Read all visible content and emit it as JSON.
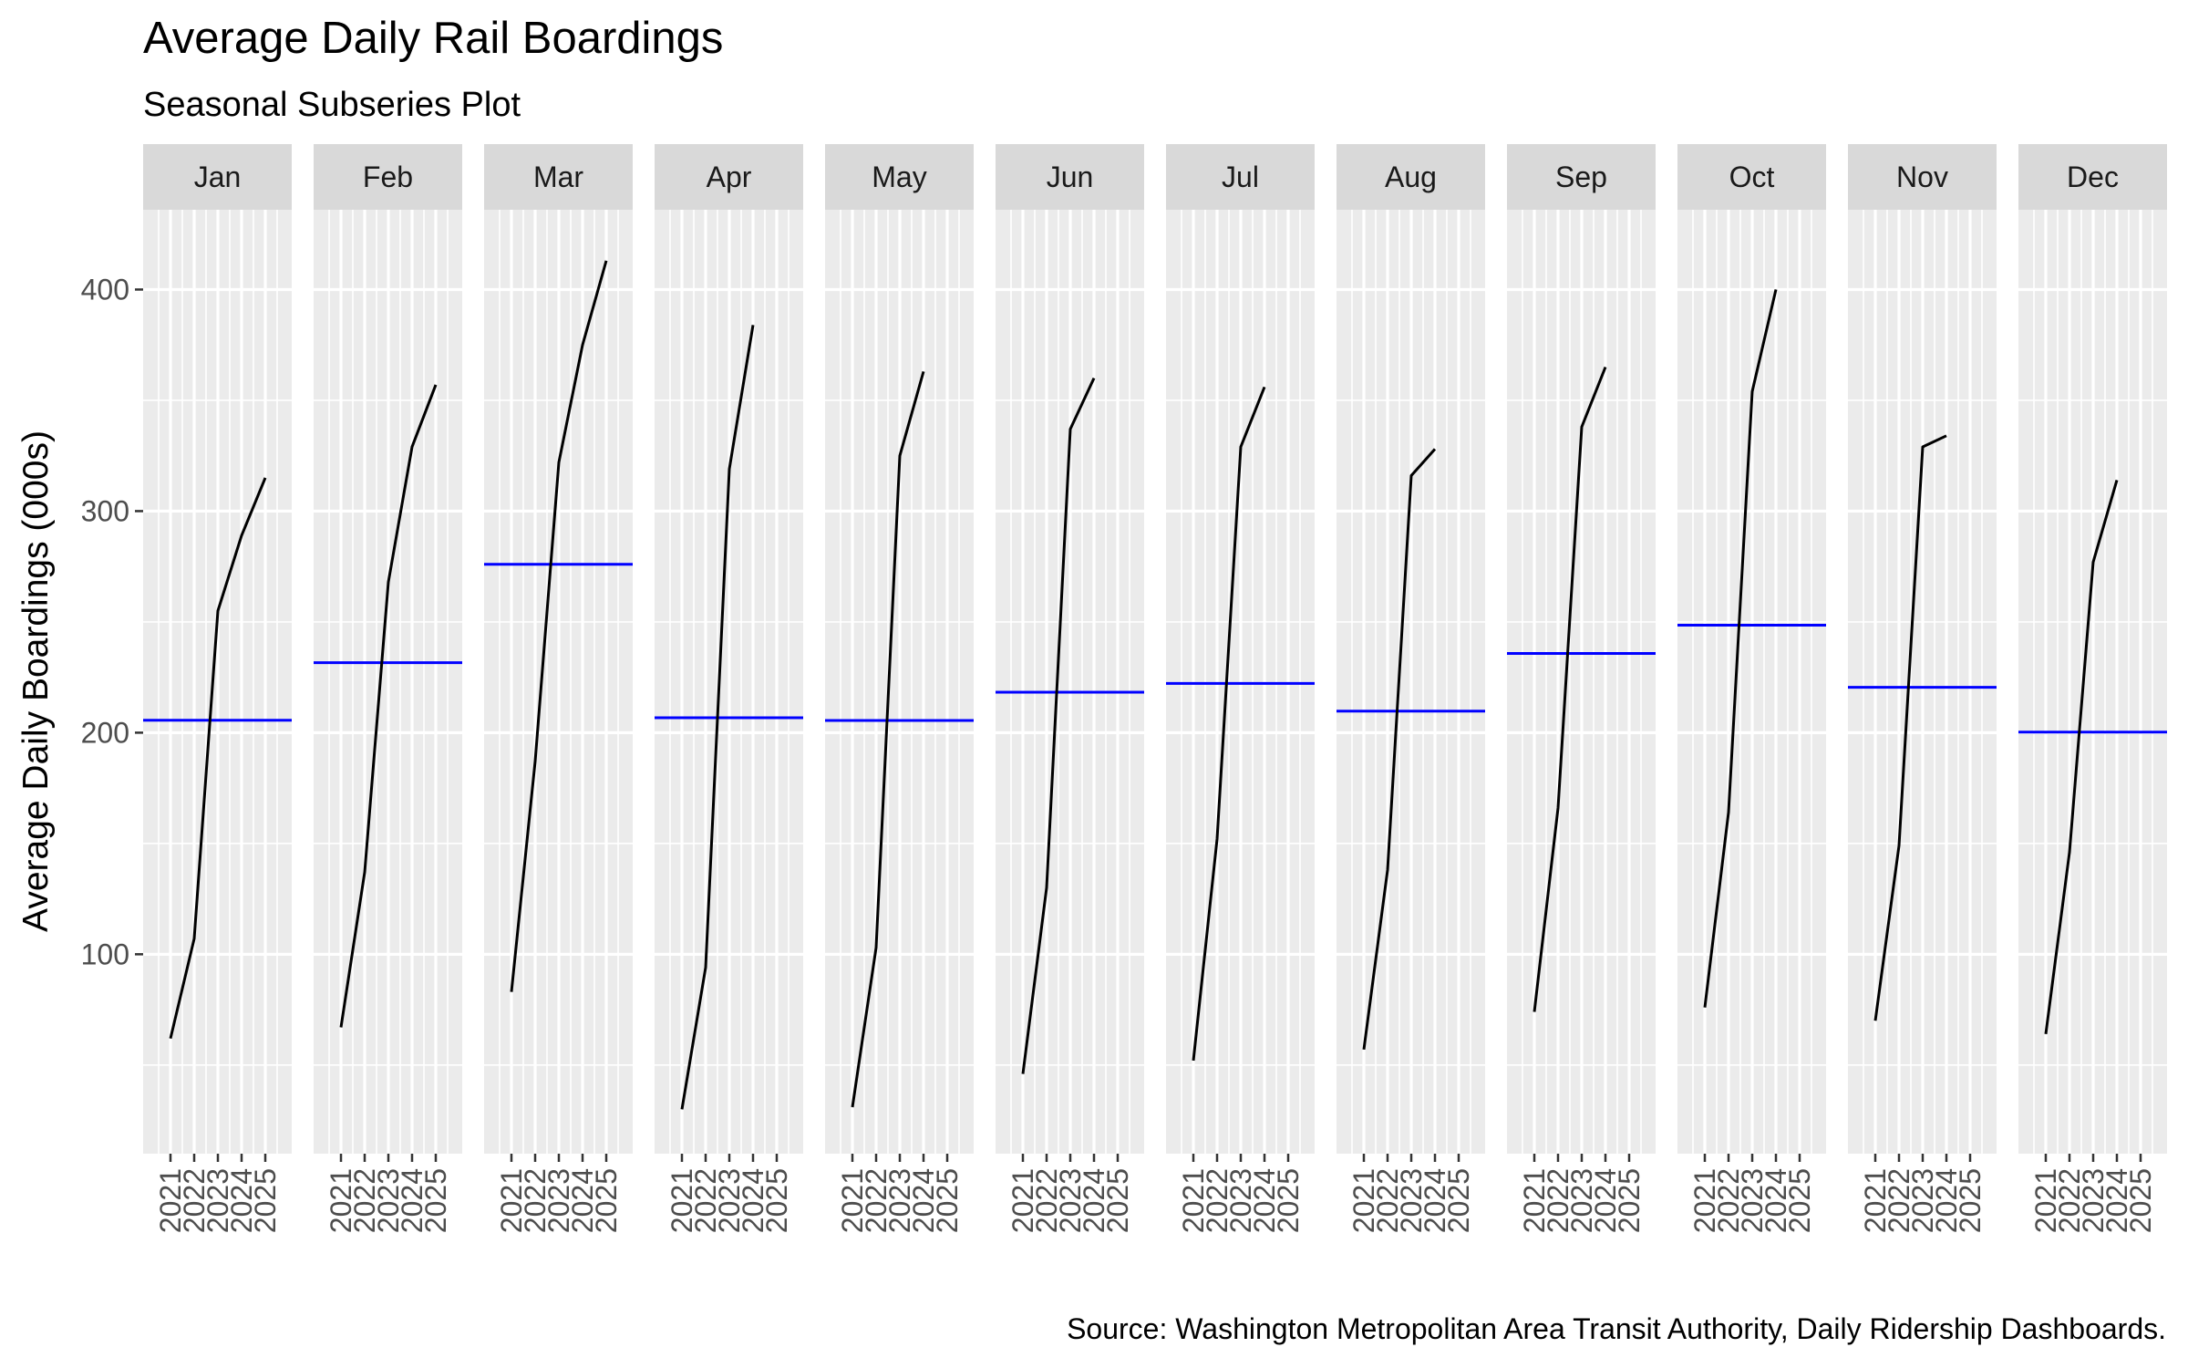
{
  "chart_data": {
    "type": "line",
    "title": "Average Daily Rail Boardings",
    "subtitle": "Seasonal Subseries Plot",
    "ylabel": "Average Daily Boardings (000s)",
    "xlabel": "",
    "caption": "Source: Washington Metropolitan Area Transit Authority, Daily Ridership Dashboards.",
    "ylim": [
      10,
      436
    ],
    "yticks": [
      100,
      200,
      300,
      400
    ],
    "x_ticks": [
      "2021",
      "2022",
      "2023",
      "2024",
      "2025"
    ],
    "grid": true,
    "colors": {
      "panel_bg": "#ebebeb",
      "strip_bg": "#d9d9d9",
      "grid": "#ffffff",
      "series": "#000000",
      "mean_line": "#0000ff"
    },
    "panels": [
      {
        "month": "Jan",
        "years": [
          2021,
          2022,
          2023,
          2024,
          2025
        ],
        "values": [
          62,
          107,
          255,
          289,
          315
        ],
        "mean": 205.6
      },
      {
        "month": "Feb",
        "years": [
          2021,
          2022,
          2023,
          2024,
          2025
        ],
        "values": [
          67,
          137,
          268,
          329,
          357
        ],
        "mean": 231.6
      },
      {
        "month": "Mar",
        "years": [
          2021,
          2022,
          2023,
          2024,
          2025
        ],
        "values": [
          83,
          187,
          322,
          375,
          413
        ],
        "mean": 276.0
      },
      {
        "month": "Apr",
        "years": [
          2021,
          2022,
          2023,
          2024
        ],
        "values": [
          30,
          94,
          319,
          384
        ],
        "mean": 206.75
      },
      {
        "month": "May",
        "years": [
          2021,
          2022,
          2023,
          2024
        ],
        "values": [
          31,
          103,
          325,
          363
        ],
        "mean": 205.5
      },
      {
        "month": "Jun",
        "years": [
          2021,
          2022,
          2023,
          2024
        ],
        "values": [
          46,
          130,
          337,
          360
        ],
        "mean": 218.25
      },
      {
        "month": "Jul",
        "years": [
          2021,
          2022,
          2023,
          2024
        ],
        "values": [
          52,
          152,
          329,
          356
        ],
        "mean": 222.25
      },
      {
        "month": "Aug",
        "years": [
          2021,
          2022,
          2023,
          2024
        ],
        "values": [
          57,
          138,
          316,
          328
        ],
        "mean": 209.75
      },
      {
        "month": "Sep",
        "years": [
          2021,
          2022,
          2023,
          2024
        ],
        "values": [
          74,
          166,
          338,
          365
        ],
        "mean": 235.75
      },
      {
        "month": "Oct",
        "years": [
          2021,
          2022,
          2023,
          2024
        ],
        "values": [
          76,
          164,
          354,
          400
        ],
        "mean": 248.5
      },
      {
        "month": "Nov",
        "years": [
          2021,
          2022,
          2023,
          2024
        ],
        "values": [
          70,
          149,
          329,
          334
        ],
        "mean": 220.5
      },
      {
        "month": "Dec",
        "years": [
          2021,
          2022,
          2023,
          2024
        ],
        "values": [
          64,
          146,
          277,
          314
        ],
        "mean": 200.25
      }
    ]
  }
}
